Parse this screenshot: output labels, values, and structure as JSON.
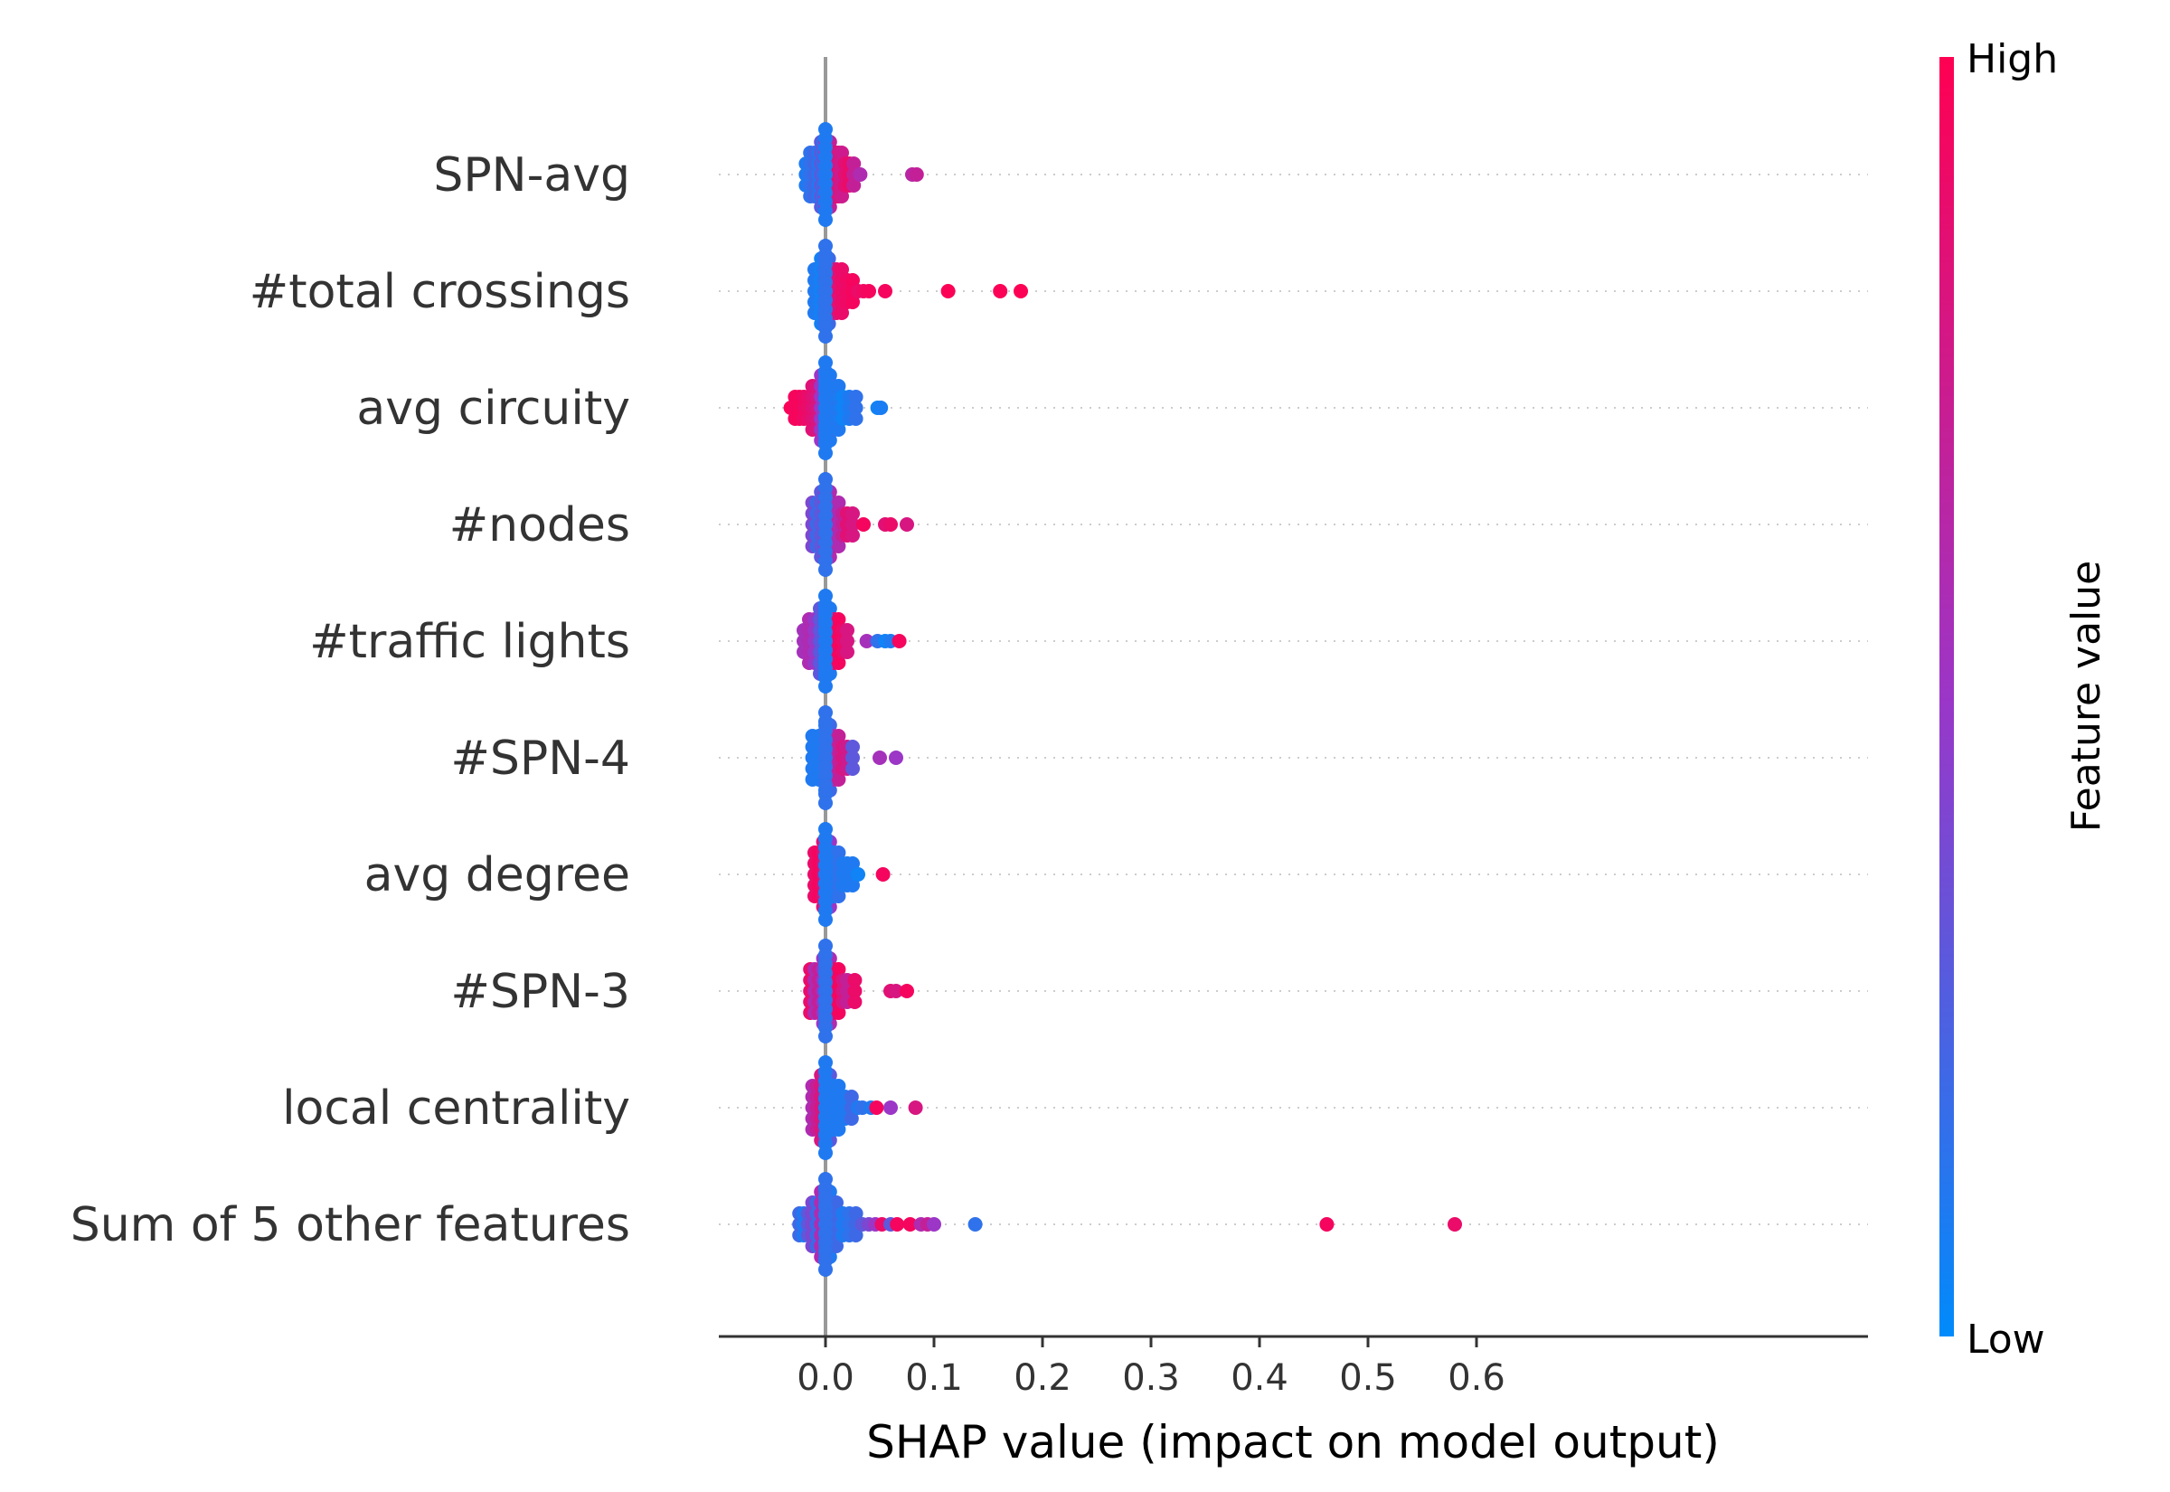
{
  "chart_data": {
    "type": "scatter",
    "xlabel": "SHAP value (impact on model output)",
    "x_ticks": [
      "0.0",
      "0.1",
      "0.2",
      "0.3",
      "0.4",
      "0.5",
      "0.6"
    ],
    "x_tick_values": [
      0.0,
      0.1,
      0.2,
      0.3,
      0.4,
      0.5,
      0.6
    ],
    "xlim": [
      -0.062,
      0.605
    ],
    "colorbar": {
      "title": "Feature value",
      "high_label": "High",
      "low_label": "Low",
      "high_color": "#ff0052",
      "low_color": "#008bfb"
    },
    "features": [
      {
        "name": "SPN-avg",
        "points": [
          [
            -0.018,
            0.1
          ],
          [
            -0.014,
            0.15
          ],
          [
            -0.01,
            0.2
          ],
          [
            -0.006,
            0.1
          ],
          [
            -0.004,
            0.3
          ],
          [
            -0.002,
            0.2
          ],
          [
            0.0,
            0.5
          ],
          [
            0.002,
            0.6
          ],
          [
            0.004,
            0.7
          ],
          [
            0.006,
            0.8
          ],
          [
            0.008,
            0.85
          ],
          [
            0.01,
            0.9
          ],
          [
            0.012,
            0.8
          ],
          [
            0.015,
            0.75
          ],
          [
            0.018,
            0.85
          ],
          [
            0.022,
            0.9
          ],
          [
            0.026,
            0.7
          ],
          [
            0.032,
            0.6
          ],
          [
            0.08,
            0.65
          ],
          [
            0.084,
            0.7
          ]
        ]
      },
      {
        "name": "#total crossings",
        "points": [
          [
            -0.01,
            0.1
          ],
          [
            -0.004,
            0.05
          ],
          [
            -0.002,
            0.1
          ],
          [
            0.0,
            0.15
          ],
          [
            0.003,
            0.2
          ],
          [
            0.006,
            0.8
          ],
          [
            0.01,
            0.85
          ],
          [
            0.015,
            0.9
          ],
          [
            0.02,
            0.92
          ],
          [
            0.025,
            0.95
          ],
          [
            0.03,
            0.9
          ],
          [
            0.035,
            0.93
          ],
          [
            0.04,
            0.95
          ],
          [
            0.055,
            0.95
          ],
          [
            0.113,
            0.98
          ],
          [
            0.161,
            0.98
          ],
          [
            0.18,
            0.99
          ]
        ]
      },
      {
        "name": "avg circuity",
        "points": [
          [
            -0.032,
            0.98
          ],
          [
            -0.028,
            0.95
          ],
          [
            -0.024,
            0.96
          ],
          [
            -0.02,
            0.92
          ],
          [
            -0.016,
            0.9
          ],
          [
            -0.012,
            0.85
          ],
          [
            -0.008,
            0.8
          ],
          [
            -0.004,
            0.5
          ],
          [
            0.0,
            0.2
          ],
          [
            0.004,
            0.1
          ],
          [
            0.008,
            0.15
          ],
          [
            0.012,
            0.1
          ],
          [
            0.016,
            0.05
          ],
          [
            0.022,
            0.1
          ],
          [
            0.028,
            0.15
          ],
          [
            0.048,
            0.05
          ],
          [
            0.051,
            0.08
          ]
        ]
      },
      {
        "name": "#nodes",
        "points": [
          [
            -0.012,
            0.4
          ],
          [
            -0.008,
            0.2
          ],
          [
            -0.004,
            0.3
          ],
          [
            0.0,
            0.5
          ],
          [
            0.004,
            0.6
          ],
          [
            0.008,
            0.7
          ],
          [
            0.012,
            0.6
          ],
          [
            0.016,
            0.7
          ],
          [
            0.02,
            0.85
          ],
          [
            0.025,
            0.8
          ],
          [
            0.035,
            0.95
          ],
          [
            0.055,
            0.85
          ],
          [
            0.06,
            0.9
          ],
          [
            0.075,
            0.8
          ]
        ]
      },
      {
        "name": "#traffic lights",
        "points": [
          [
            -0.02,
            0.55
          ],
          [
            -0.015,
            0.6
          ],
          [
            -0.01,
            0.5
          ],
          [
            -0.005,
            0.3
          ],
          [
            0.0,
            0.1
          ],
          [
            0.004,
            0.1
          ],
          [
            0.008,
            0.9
          ],
          [
            0.012,
            0.95
          ],
          [
            0.016,
            0.9
          ],
          [
            0.02,
            0.8
          ],
          [
            0.038,
            0.55
          ],
          [
            0.048,
            0.15
          ],
          [
            0.055,
            0.05
          ],
          [
            0.06,
            0.1
          ],
          [
            0.068,
            0.95
          ]
        ]
      },
      {
        "name": "#SPN-4",
        "points": [
          [
            -0.012,
            0.1
          ],
          [
            -0.006,
            0.1
          ],
          [
            0.0,
            0.1
          ],
          [
            0.004,
            0.2
          ],
          [
            0.008,
            0.6
          ],
          [
            0.012,
            0.7
          ],
          [
            0.016,
            0.8
          ],
          [
            0.02,
            0.75
          ],
          [
            0.025,
            0.3
          ],
          [
            0.05,
            0.55
          ],
          [
            0.065,
            0.5
          ]
        ]
      },
      {
        "name": "avg degree",
        "points": [
          [
            -0.01,
            0.9
          ],
          [
            -0.006,
            0.95
          ],
          [
            -0.002,
            0.85
          ],
          [
            0.0,
            0.8
          ],
          [
            0.004,
            0.5
          ],
          [
            0.008,
            0.1
          ],
          [
            0.012,
            0.15
          ],
          [
            0.016,
            0.1
          ],
          [
            0.02,
            0.1
          ],
          [
            0.025,
            0.1
          ],
          [
            0.03,
            0.05
          ],
          [
            0.053,
            0.95
          ]
        ]
      },
      {
        "name": "#SPN-3",
        "points": [
          [
            -0.014,
            0.9
          ],
          [
            -0.01,
            0.6
          ],
          [
            -0.006,
            0.7
          ],
          [
            -0.002,
            0.5
          ],
          [
            0.0,
            0.3
          ],
          [
            0.004,
            0.6
          ],
          [
            0.008,
            0.9
          ],
          [
            0.012,
            0.95
          ],
          [
            0.016,
            0.8
          ],
          [
            0.02,
            0.7
          ],
          [
            0.027,
            0.9
          ],
          [
            0.06,
            0.85
          ],
          [
            0.065,
            0.8
          ],
          [
            0.075,
            0.95
          ]
        ]
      },
      {
        "name": "local centrality",
        "points": [
          [
            -0.012,
            0.6
          ],
          [
            -0.008,
            0.7
          ],
          [
            -0.004,
            0.8
          ],
          [
            0.0,
            0.6
          ],
          [
            0.004,
            0.3
          ],
          [
            0.008,
            0.1
          ],
          [
            0.012,
            0.1
          ],
          [
            0.018,
            0.1
          ],
          [
            0.024,
            0.2
          ],
          [
            0.03,
            0.1
          ],
          [
            0.034,
            0.15
          ],
          [
            0.042,
            0.1
          ],
          [
            0.047,
            0.95
          ],
          [
            0.06,
            0.5
          ],
          [
            0.083,
            0.8
          ]
        ]
      },
      {
        "name": "Sum of 5 other features",
        "points": [
          [
            -0.024,
            0.2
          ],
          [
            -0.02,
            0.1
          ],
          [
            -0.016,
            0.3
          ],
          [
            -0.012,
            0.4
          ],
          [
            -0.008,
            0.2
          ],
          [
            -0.004,
            0.6
          ],
          [
            0.0,
            0.3
          ],
          [
            0.004,
            0.1
          ],
          [
            0.01,
            0.2
          ],
          [
            0.016,
            0.1
          ],
          [
            0.022,
            0.15
          ],
          [
            0.028,
            0.2
          ],
          [
            0.034,
            0.3
          ],
          [
            0.04,
            0.4
          ],
          [
            0.046,
            0.5
          ],
          [
            0.052,
            0.9
          ],
          [
            0.06,
            0.3
          ],
          [
            0.066,
            0.95
          ],
          [
            0.078,
            0.95
          ],
          [
            0.088,
            0.6
          ],
          [
            0.094,
            0.7
          ],
          [
            0.1,
            0.5
          ],
          [
            0.138,
            0.15
          ],
          [
            0.462,
            0.95
          ],
          [
            0.58,
            0.9
          ]
        ]
      }
    ]
  }
}
